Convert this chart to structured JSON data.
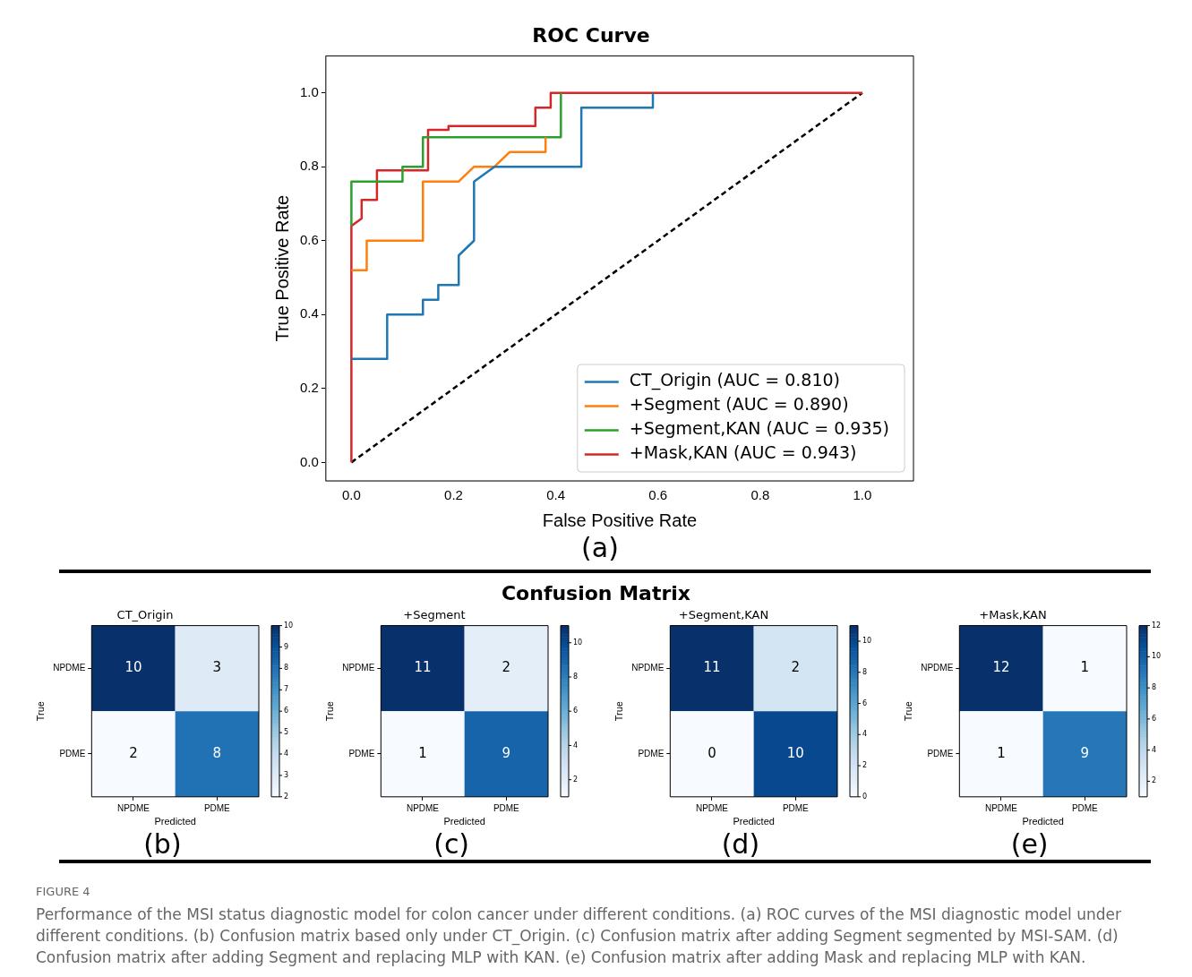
{
  "chart_data": [
    {
      "type": "line",
      "title": "ROC Curve",
      "xlabel": "False Positive Rate",
      "ylabel": "True Positive Rate",
      "xlim": [
        -0.05,
        1.1
      ],
      "ylim": [
        -0.05,
        1.1
      ],
      "xticks": [
        {
          "value": 0,
          "label": "0.0"
        },
        0.2,
        0.4,
        0.6,
        0.8,
        {
          "value": 1,
          "label": "1.0"
        }
      ],
      "yticks": [
        {
          "value": 0,
          "label": "0.0"
        },
        0.2,
        0.4,
        0.6,
        0.8,
        {
          "value": 1,
          "label": "1.0"
        }
      ],
      "legend": "bottom right",
      "series": [
        {
          "name": "CT_Origin (AUC = 0.810)",
          "color": "#1f77b4",
          "x": [
            0,
            0.07,
            0.07,
            0.14,
            0.14,
            0.17,
            0.17,
            0.21,
            0.21,
            0.24,
            0.24,
            0.28,
            0.45,
            0.45,
            0.59,
            0.59
          ],
          "values": [
            0.28,
            0.28,
            0.4,
            0.4,
            0.44,
            0.44,
            0.48,
            0.48,
            0.56,
            0.6,
            0.76,
            0.8,
            0.8,
            0.96,
            0.96,
            1
          ]
        },
        {
          "name": "+Segment (AUC = 0.890)",
          "color": "#ff7f0e",
          "x": [
            0,
            0.03,
            0.03,
            0.14,
            0.14,
            0.21,
            0.24,
            0.28,
            0.31,
            0.38,
            0.38
          ],
          "values": [
            0.52,
            0.52,
            0.6,
            0.6,
            0.76,
            0.76,
            0.8,
            0.8,
            0.84,
            0.84,
            0.88
          ]
        },
        {
          "name": "+Segment,KAN (AUC = 0.935)",
          "color": "#2ca02c",
          "x": [
            0,
            0,
            0.1,
            0.1,
            0.14,
            0.14,
            0.41,
            0.41
          ],
          "values": [
            0.64,
            0.76,
            0.76,
            0.8,
            0.8,
            0.88,
            0.88,
            1
          ]
        },
        {
          "name": "+Mask,KAN (AUC = 0.943)",
          "color": "#d62728",
          "x": [
            0,
            0,
            0.02,
            0.02,
            0.05,
            0.05,
            0.15,
            0.15,
            0.19,
            0.19,
            0.36,
            0.36,
            0.39,
            0.39,
            1
          ],
          "values": [
            0,
            0.64,
            0.66,
            0.71,
            0.71,
            0.79,
            0.79,
            0.9,
            0.9,
            0.91,
            0.91,
            0.96,
            0.96,
            1,
            1
          ]
        },
        {
          "line_style": "dashed",
          "color": "#000000",
          "x": [
            0,
            1
          ],
          "values": [
            0,
            1
          ]
        }
      ],
      "annotations": [
        "(a)",
        "FIGURE 4",
        "Performance of the MSI status diagnostic model for colon cancer under different conditions. (a) ROC curves of the MSI diagnostic model under different conditions. (b) Confusion matrix based only under CT_Origin. (c) Confusion matrix after adding Segment segmented by MSI-SAM. (d) Confusion matrix after adding Segment and replacing MLP with KAN. (e) Confusion matrix after adding Mask and replacing MLP with KAN."
      ]
    },
    {
      "type": "heatmap",
      "title": "CT_Origin",
      "xlabel": "Predicted",
      "ylabel": "True",
      "categories": [
        "NPDME",
        "PDME"
      ],
      "y_categories": [
        "NPDME",
        "PDME"
      ],
      "cells": [
        [
          10,
          3
        ],
        [
          2,
          8
        ]
      ],
      "data_labels": true,
      "clim": [
        2,
        10
      ],
      "cticks": [
        2,
        3,
        4,
        5,
        6,
        7,
        8,
        9,
        10
      ],
      "annotations": [
        "(b)",
        "Confusion Matrix"
      ]
    },
    {
      "type": "heatmap",
      "title": "+Segment",
      "xlabel": "Predicted",
      "ylabel": "True",
      "categories": [
        "NPDME",
        "PDME"
      ],
      "y_categories": [
        "NPDME",
        "PDME"
      ],
      "cells": [
        [
          11,
          2
        ],
        [
          1,
          9
        ]
      ],
      "data_labels": true,
      "clim": [
        1,
        11
      ],
      "cticks": [
        2,
        4,
        6,
        8,
        10
      ],
      "annotations": [
        "(c)"
      ]
    },
    {
      "type": "heatmap",
      "title": "+Segment,KAN",
      "xlabel": "Predicted",
      "ylabel": "True",
      "categories": [
        "NPDME",
        "PDME"
      ],
      "y_categories": [
        "NPDME",
        "PDME"
      ],
      "cells": [
        [
          11,
          2
        ],
        [
          0,
          10
        ]
      ],
      "data_labels": true,
      "clim": [
        0,
        11
      ],
      "cticks": [
        0,
        2,
        4,
        6,
        8,
        10
      ],
      "annotations": [
        "(d)"
      ]
    },
    {
      "type": "heatmap",
      "title": "+Mask,KAN",
      "xlabel": "Predicted",
      "ylabel": "True",
      "categories": [
        "NPDME",
        "PDME"
      ],
      "y_categories": [
        "NPDME",
        "PDME"
      ],
      "cells": [
        [
          12,
          1
        ],
        [
          1,
          9
        ]
      ],
      "data_labels": true,
      "clim": [
        1,
        12
      ],
      "cticks": [
        2,
        4,
        6,
        8,
        10,
        12
      ],
      "annotations": [
        "(e)"
      ]
    }
  ]
}
